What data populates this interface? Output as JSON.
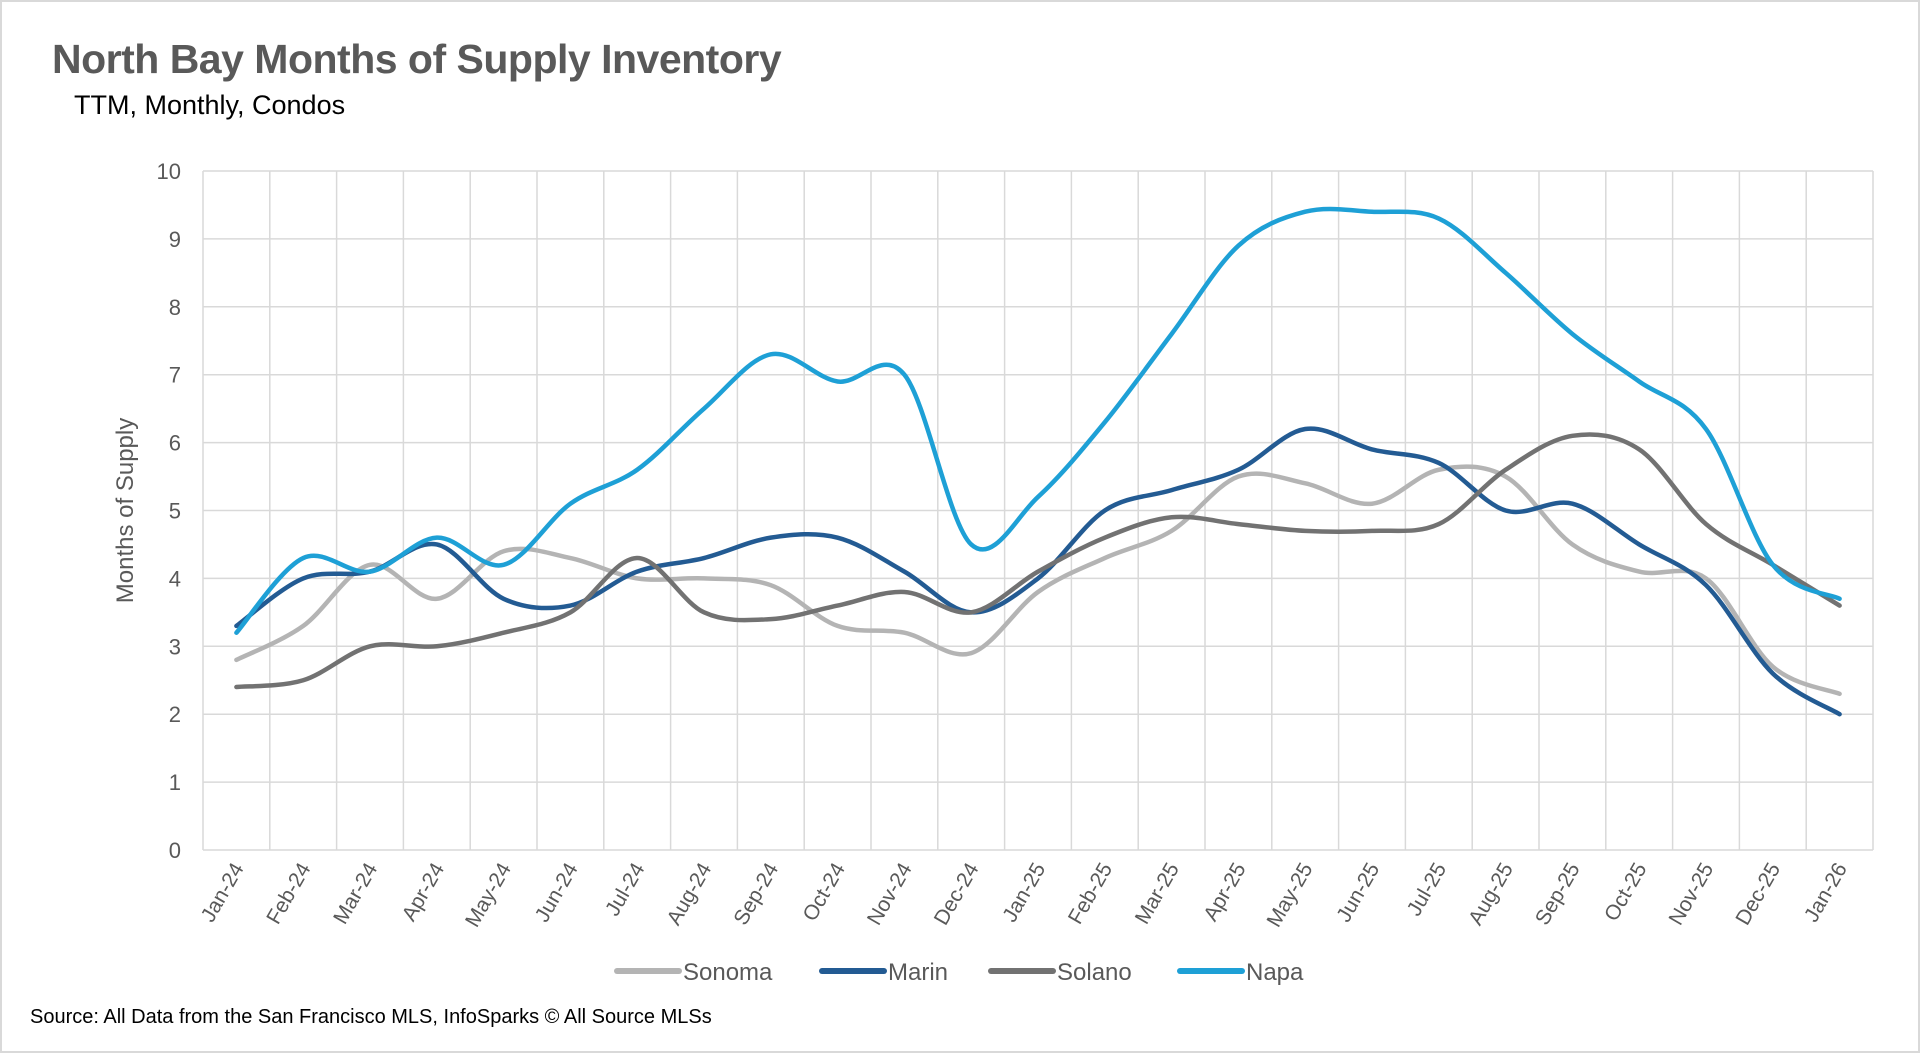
{
  "chart_data": {
    "type": "line",
    "title": "North Bay Months of Supply Inventory",
    "subtitle": "TTM, Monthly, Condos",
    "xlabel": "",
    "ylabel": "Months of Supply",
    "ylim": [
      0,
      10
    ],
    "yticks": [
      0,
      1,
      2,
      3,
      4,
      5,
      6,
      7,
      8,
      9,
      10
    ],
    "grid": true,
    "smoothed": true,
    "legend_placement": "bottom",
    "categories": [
      "Jan-24",
      "Feb-24",
      "Mar-24",
      "Apr-24",
      "May-24",
      "Jun-24",
      "Jul-24",
      "Aug-24",
      "Sep-24",
      "Oct-24",
      "Nov-24",
      "Dec-24",
      "Jan-25",
      "Feb-25",
      "Mar-25",
      "Apr-25",
      "May-25",
      "Jun-25",
      "Jul-25",
      "Aug-25",
      "Sep-25",
      "Oct-25",
      "Nov-25",
      "Dec-25",
      "Jan-26"
    ],
    "series": [
      {
        "name": "Sonoma",
        "color": "#b4b4b4",
        "values": [
          2.8,
          3.3,
          4.2,
          3.7,
          4.4,
          4.3,
          4.0,
          4.0,
          3.9,
          3.3,
          3.2,
          2.9,
          3.8,
          4.3,
          4.7,
          5.5,
          5.4,
          5.1,
          5.6,
          5.5,
          4.5,
          4.1,
          4.0,
          2.7,
          2.3
        ]
      },
      {
        "name": "Marin",
        "color": "#235b93",
        "values": [
          3.3,
          4.0,
          4.1,
          4.5,
          3.7,
          3.6,
          4.1,
          4.3,
          4.6,
          4.6,
          4.1,
          3.5,
          4.0,
          5.0,
          5.3,
          5.6,
          6.2,
          5.9,
          5.7,
          5.0,
          5.1,
          4.5,
          3.9,
          2.6,
          2.0
        ]
      },
      {
        "name": "Solano",
        "color": "#727272",
        "values": [
          2.4,
          2.5,
          3.0,
          3.0,
          3.2,
          3.5,
          4.3,
          3.5,
          3.4,
          3.6,
          3.8,
          3.5,
          4.1,
          4.6,
          4.9,
          4.8,
          4.7,
          4.7,
          4.8,
          5.6,
          6.1,
          5.9,
          4.8,
          4.2,
          3.6
        ]
      },
      {
        "name": "Napa",
        "color": "#1ea0d6",
        "values": [
          3.2,
          4.3,
          4.1,
          4.6,
          4.2,
          5.1,
          5.6,
          6.5,
          7.3,
          6.9,
          7.0,
          4.5,
          5.2,
          6.3,
          7.6,
          8.9,
          9.4,
          9.4,
          9.3,
          8.5,
          7.6,
          6.9,
          6.2,
          4.2,
          3.7
        ]
      }
    ],
    "source": "Source: All Data from the San Francisco MLS, InfoSparks © All Source MLSs"
  }
}
